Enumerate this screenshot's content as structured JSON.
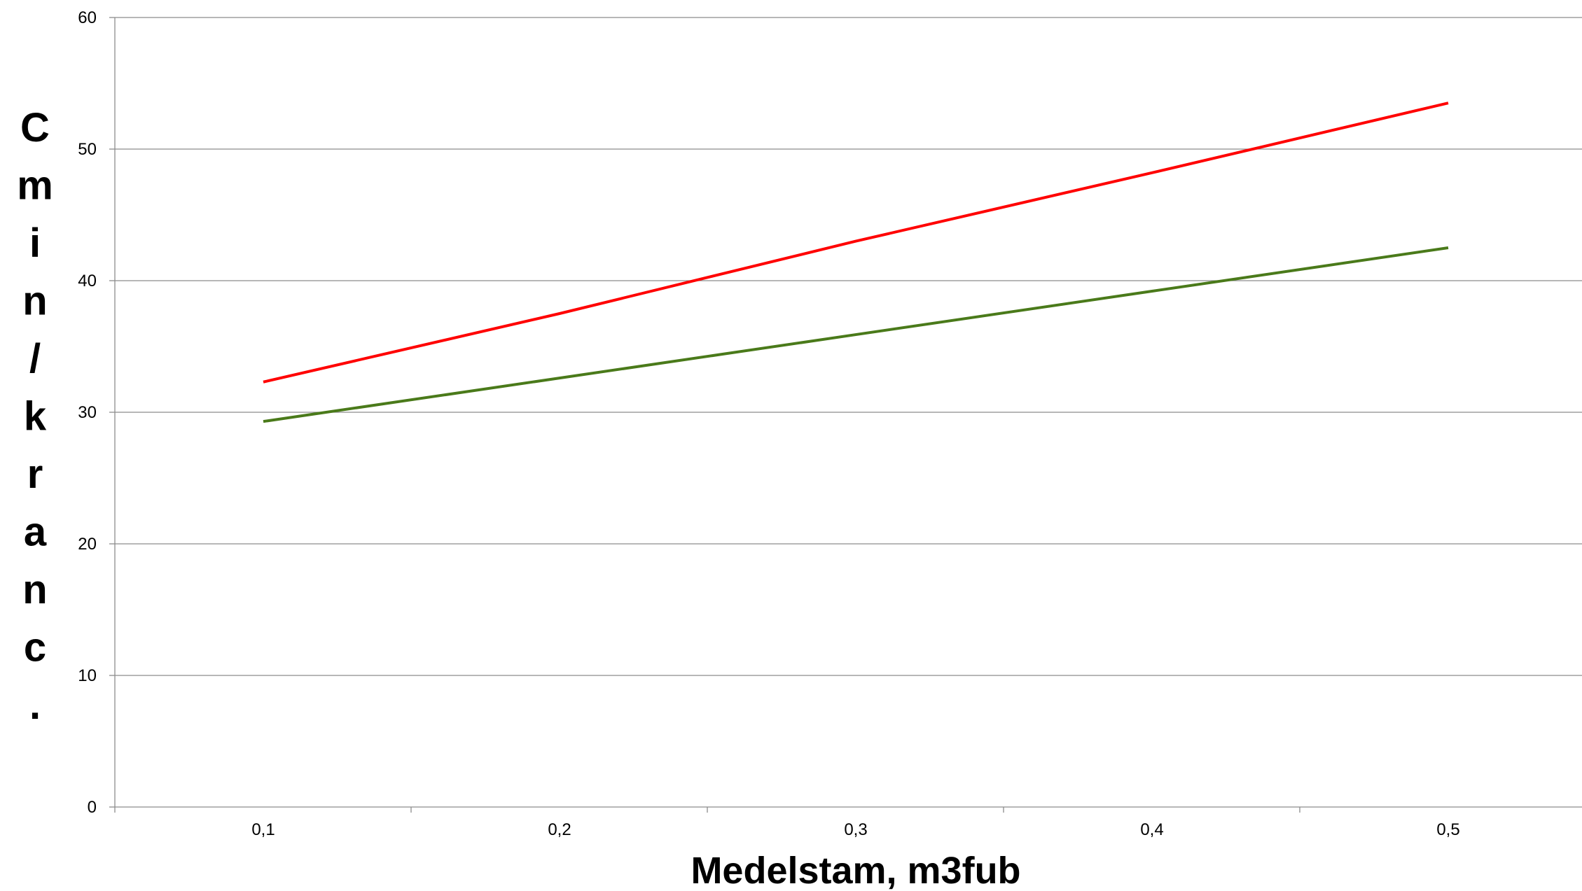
{
  "chart_data": {
    "type": "line",
    "title": "",
    "xlabel": "Medelstam, m3fub",
    "ylabel": "Cmin/kranc.",
    "categories": [
      "0,1",
      "0,2",
      "0,3",
      "0,4",
      "0,5"
    ],
    "x": [
      0.1,
      0.2,
      0.3,
      0.4,
      0.5
    ],
    "ylim": [
      0,
      60
    ],
    "yticks": [
      "0",
      "10",
      "20",
      "30",
      "40",
      "50",
      "60"
    ],
    "grid": true,
    "legend": "none",
    "series": [
      {
        "color": "#ff0000",
        "values": [
          32.3,
          37.5,
          43.0,
          48.2,
          53.5
        ]
      },
      {
        "color": "#4a7a1a",
        "values": [
          29.3,
          32.6,
          35.9,
          39.2,
          42.5
        ]
      }
    ]
  }
}
